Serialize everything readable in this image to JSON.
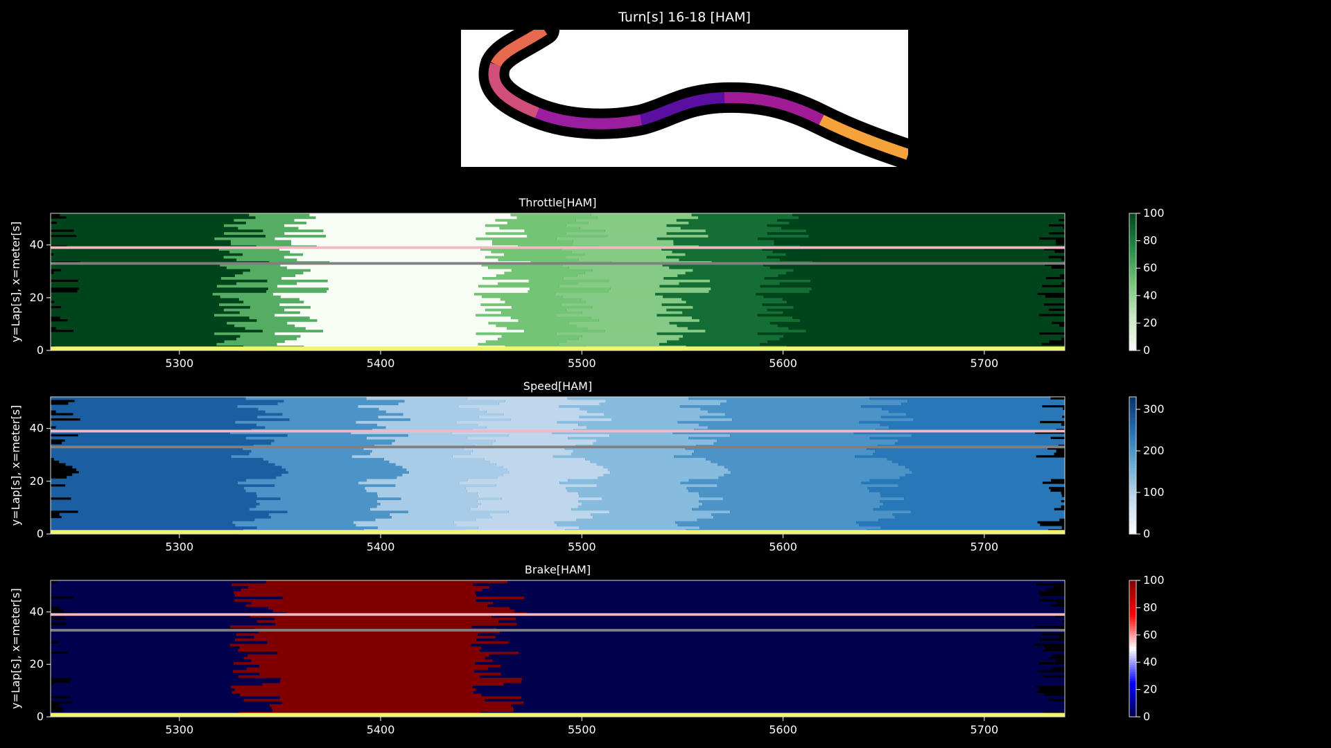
{
  "title": "Turn[s] 16-18 [HAM]",
  "colors": {
    "background": "#000000",
    "track_outline": "#000000",
    "missing_row": "#f3b8c4",
    "grey_row": "#808080",
    "bottom_row": "#f4f66a"
  },
  "chart_data": [
    {
      "type": "heatmap",
      "title": "Throttle[HAM]",
      "ylabel": "y=Lap[s], x=meter[s]",
      "colormap": "Greens",
      "xlim": [
        5236,
        5740
      ],
      "ylim": [
        0,
        52
      ],
      "xticks": [
        5300,
        5400,
        5500,
        5600,
        5700
      ],
      "yticks": [
        0,
        20,
        40
      ],
      "clim": [
        0,
        100
      ],
      "cbar_ticks": [
        0,
        20,
        40,
        60,
        80,
        100
      ],
      "zones": [
        {
          "x": [
            5236,
            5330
          ],
          "value": 100
        },
        {
          "x": [
            5330,
            5360
          ],
          "value": 60
        },
        {
          "x": [
            5360,
            5460
          ],
          "value": 0
        },
        {
          "x": [
            5460,
            5500
          ],
          "value": 50
        },
        {
          "x": [
            5500,
            5550
          ],
          "value": 45
        },
        {
          "x": [
            5550,
            5600
          ],
          "value": 85
        },
        {
          "x": [
            5600,
            5740
          ],
          "value": 100
        }
      ]
    },
    {
      "type": "heatmap",
      "title": "Speed[HAM]",
      "ylabel": "y=Lap[s], x=meter[s]",
      "colormap": "Blues",
      "xlim": [
        5236,
        5740
      ],
      "ylim": [
        0,
        52
      ],
      "xticks": [
        5300,
        5400,
        5500,
        5600,
        5700
      ],
      "yticks": [
        0,
        20,
        40
      ],
      "clim": [
        0,
        330
      ],
      "cbar_ticks": [
        0,
        100,
        200,
        300
      ],
      "zones": [
        {
          "x": [
            5236,
            5340
          ],
          "value": 270
        },
        {
          "x": [
            5340,
            5400
          ],
          "value": 200
        },
        {
          "x": [
            5400,
            5450
          ],
          "value": 110
        },
        {
          "x": [
            5450,
            5500
          ],
          "value": 90
        },
        {
          "x": [
            5500,
            5560
          ],
          "value": 140
        },
        {
          "x": [
            5560,
            5650
          ],
          "value": 200
        },
        {
          "x": [
            5650,
            5740
          ],
          "value": 240
        }
      ]
    },
    {
      "type": "heatmap",
      "title": "Brake[HAM]",
      "ylabel": "y=Lap[s], x=meter[s]",
      "colormap": "seismic",
      "xlim": [
        5236,
        5740
      ],
      "ylim": [
        0,
        52
      ],
      "xticks": [
        5300,
        5400,
        5500,
        5600,
        5700
      ],
      "yticks": [
        0,
        20,
        40
      ],
      "clim": [
        0,
        100
      ],
      "cbar_ticks": [
        0,
        20,
        40,
        60,
        80,
        100
      ],
      "zones": [
        {
          "x": [
            5236,
            5340
          ],
          "value": 0
        },
        {
          "x": [
            5340,
            5460
          ],
          "value": 100
        },
        {
          "x": [
            5460,
            5740
          ],
          "value": 0
        }
      ]
    }
  ]
}
